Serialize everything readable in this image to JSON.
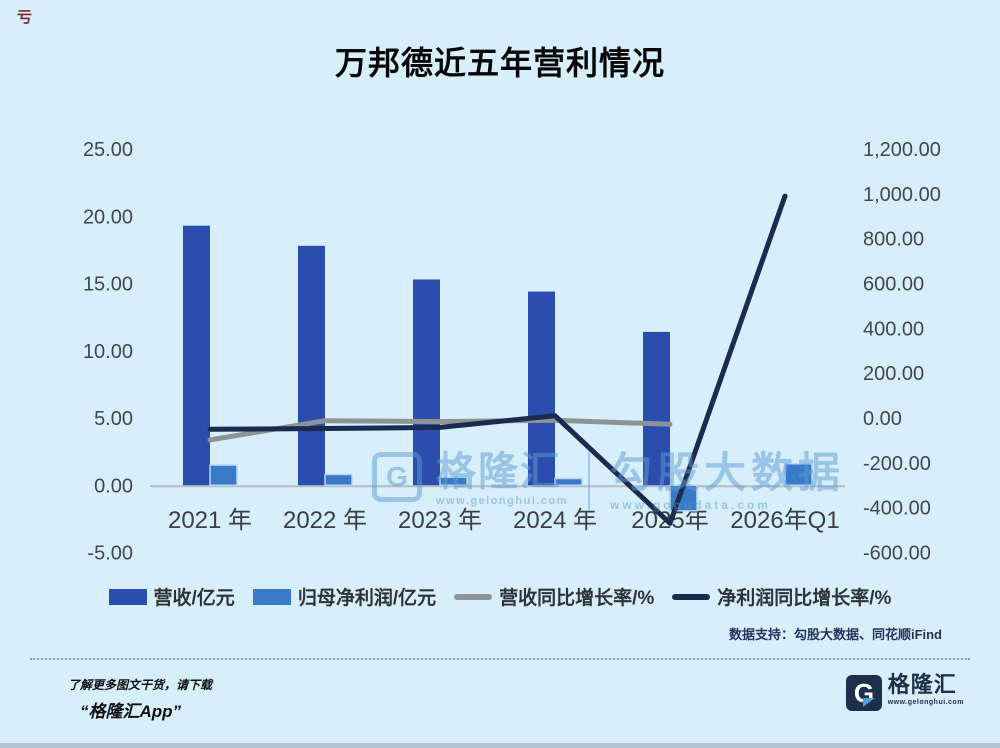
{
  "page": {
    "corner_mark": "亏"
  },
  "chart_data": {
    "type": "bar+line",
    "title": "万邦德近五年营利情况",
    "categories": [
      "2021 年",
      "2022 年",
      "2023 年",
      "2024 年",
      "2025年",
      "2026年Q1"
    ],
    "series": [
      {
        "name": "营收/亿元",
        "type": "bar",
        "axis": "left",
        "color": "#2b4dae",
        "values": [
          19.3,
          17.8,
          15.3,
          14.4,
          11.4,
          null
        ]
      },
      {
        "name": "归母净利润/亿元",
        "type": "bar",
        "axis": "left",
        "color": "#3a78c8",
        "values": [
          1.5,
          0.8,
          0.6,
          0.5,
          -1.9,
          1.6
        ]
      },
      {
        "name": "营收同比增长率/%",
        "type": "line",
        "axis": "right",
        "color": "#8e9397",
        "values": [
          -98,
          -12,
          -16,
          -10,
          -28,
          null
        ]
      },
      {
        "name": "净利润同比增长率/%",
        "type": "line",
        "axis": "right",
        "color": "#1b2b50",
        "values": [
          -50,
          -47,
          -42,
          10,
          -470,
          990
        ]
      }
    ],
    "axes": {
      "left": {
        "min": -5,
        "max": 25,
        "step": 5,
        "ticks": [
          "25.00",
          "20.00",
          "15.00",
          "10.00",
          "5.00",
          "0.00",
          "-5.00"
        ]
      },
      "right": {
        "min": -600,
        "max": 1200,
        "step": 200,
        "ticks": [
          "1,200.00",
          "1,000.00",
          "800.00",
          "600.00",
          "400.00",
          "200.00",
          "0.00",
          "-200.00",
          "-400.00",
          "-600.00"
        ]
      }
    },
    "legend_position": "bottom",
    "grid": "off"
  },
  "watermark": {
    "brand_initial": "G",
    "brand": "格隆汇",
    "brand_url": "www.gelonghui.com",
    "partner": "勾股大数据",
    "partner_url": "www.gogudata.com"
  },
  "footer": {
    "data_support": "数据支持：勾股大数据、同花顺iFind",
    "promo_line1": "了解更多图文干货，请下载",
    "promo_line2": "“格隆汇App”",
    "logo_initial": "G",
    "logo_name": "格隆汇",
    "logo_site": "www.gelonghui.com"
  },
  "colors": {
    "background": "#d7eefb",
    "bar_revenue": "#2b4dae",
    "bar_net_profit": "#3a78c8",
    "line_revenue_growth": "#8e9397",
    "line_profit_growth": "#1b2b50",
    "baseline": "#b7bcbf"
  }
}
